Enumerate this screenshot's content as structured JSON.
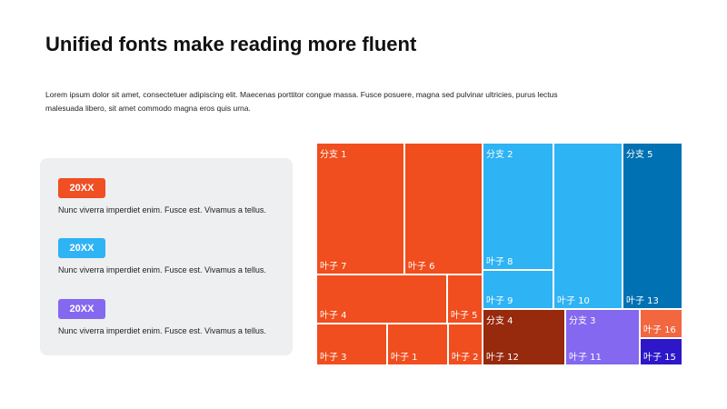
{
  "slide": {
    "title": "Unified fonts make reading more fluent",
    "description": "Lorem ipsum dolor sit amet, consectetuer adipiscing elit. Maecenas porttitor congue massa. Fusce posuere, magna sed pulvinar ultricies, purus lectus malesuada libero, sit amet commodo magna eros quis urna."
  },
  "panel": {
    "items": [
      {
        "badge": "20XX",
        "text": "Nunc viverra imperdiet enim. Fusce est. Vivamus a tellus.",
        "color": "#f04e23"
      },
      {
        "badge": "20XX",
        "text": "Nunc viverra imperdiet enim. Fusce est. Vivamus a tellus.",
        "color": "#2eb3f4"
      },
      {
        "badge": "20XX",
        "text": "Nunc viverra imperdiet enim. Fusce est. Vivamus a tellus.",
        "color": "#8468f0"
      }
    ]
  },
  "chart_data": {
    "type": "treemap",
    "branches": [
      {
        "name": "分支 1",
        "color": "#f04e1e",
        "leaves": [
          {
            "name": "叶子 7",
            "value": 44
          },
          {
            "name": "叶子 6",
            "value": 38
          },
          {
            "name": "叶子 4",
            "value": 26
          },
          {
            "name": "叶子 5",
            "value": 7
          },
          {
            "name": "叶子 3",
            "value": 14
          },
          {
            "name": "叶子 1",
            "value": 12
          },
          {
            "name": "叶子 2",
            "value": 6
          }
        ]
      },
      {
        "name": "分支 2",
        "color": "#2eb3f4",
        "leaves": [
          {
            "name": "叶子 8",
            "value": 24
          },
          {
            "name": "叶子 9",
            "value": 7
          },
          {
            "name": "叶子 10",
            "value": 22
          }
        ]
      },
      {
        "name": "分支 5",
        "color": "#0071b2",
        "leaves": [
          {
            "name": "叶子 13",
            "value": 24
          }
        ]
      },
      {
        "name": "分支 4",
        "color": "#97290d",
        "leaves": [
          {
            "name": "叶子 12",
            "value": 12
          }
        ]
      },
      {
        "name": "分支 3",
        "color": "#8468f0",
        "leaves": [
          {
            "name": "叶子 11",
            "value": 10
          }
        ]
      },
      {
        "name": "分支 3",
        "color": "#f26640",
        "leaves": [
          {
            "name": "叶子 16",
            "value": 4
          }
        ]
      },
      {
        "name": "分支 3",
        "color": "#2d17c9",
        "leaves": [
          {
            "name": "叶子 15",
            "value": 4
          }
        ]
      }
    ]
  }
}
